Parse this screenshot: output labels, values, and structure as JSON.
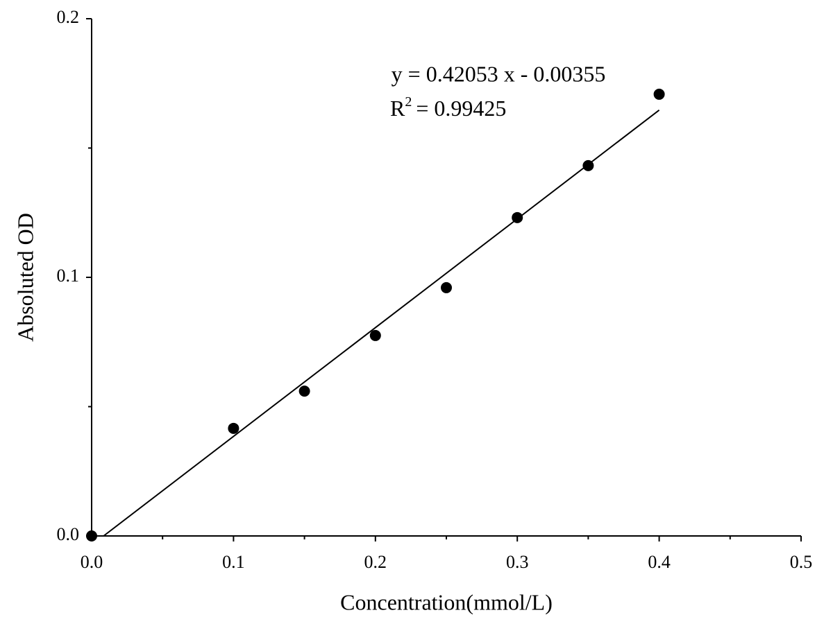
{
  "chart_data": {
    "type": "scatter",
    "x_label": "Concentration(mmol/L)",
    "y_label": "Absoluted OD",
    "series": [
      {
        "color": "#000000",
        "x": [
          0,
          0.1,
          0.15,
          0.2,
          0.25,
          0.3,
          0.35,
          0.4
        ],
        "values": [
          0,
          0.0416,
          0.056,
          0.0775,
          0.096,
          0.1231,
          0.1432,
          0.1708
        ]
      }
    ],
    "fit": {
      "equation": "y = 0.42053 x - 0.00355",
      "slope": 0.42053,
      "intercept": -0.00355,
      "r2_symbol": "R",
      "r2_exponent": "2",
      "r2_text": "= 0.99425",
      "color": "#000000"
    },
    "xlim": [
      0,
      0.5
    ],
    "ylim": [
      0,
      0.2
    ],
    "xticks": [
      {
        "value": 0,
        "label": "0.0"
      },
      0.1,
      0.2,
      0.3,
      0.4,
      0.5
    ],
    "yticks": [
      {
        "value": 0,
        "label": "0.0"
      },
      0.1,
      0.2
    ],
    "xminorticks": [
      0.05,
      0.15,
      0.25,
      0.35,
      0.45
    ],
    "yminorticks": [
      0.05,
      0.15
    ],
    "grid": false
  }
}
